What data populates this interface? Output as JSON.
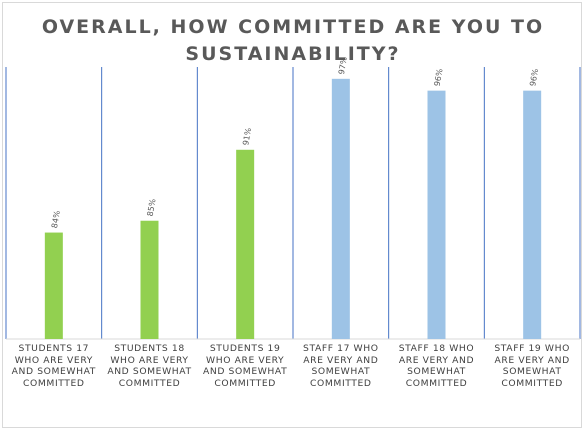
{
  "chart_data": {
    "type": "bar",
    "title_lines": [
      "OVERALL, HOW COMMITTED ARE YOU TO",
      "SUSTAINABILITY?"
    ],
    "categories": [
      [
        "STUDENTS 17",
        "WHO ARE VERY",
        "AND SOMEWHAT",
        "COMMITTED"
      ],
      [
        "STUDENTS 18",
        "WHO ARE VERY",
        "AND SOMEWHAT",
        "COMMITTED"
      ],
      [
        "STUDENTS 19",
        "WHO ARE VERY",
        "AND SOMEWHAT",
        "COMMITTED"
      ],
      [
        "STAFF 17 WHO",
        "ARE VERY AND",
        "SOMEWHAT",
        "COMMITTED"
      ],
      [
        "STAFF 18 WHO",
        "ARE VERY AND",
        "SOMEWHAT",
        "COMMITTED"
      ],
      [
        "STAFF 19 WHO",
        "ARE VERY AND",
        "SOMEWHAT",
        "COMMITTED"
      ]
    ],
    "values": [
      84,
      85,
      91,
      97,
      96,
      96
    ],
    "data_labels": [
      "84%",
      "85%",
      "91%",
      "97%",
      "96%",
      "96%"
    ],
    "bar_colors": [
      "#92d050",
      "#92d050",
      "#92d050",
      "#9dc3e6",
      "#9dc3e6",
      "#9dc3e6"
    ],
    "ylim": [
      75,
      98
    ],
    "grid": "vertical separators",
    "legend": "none"
  }
}
